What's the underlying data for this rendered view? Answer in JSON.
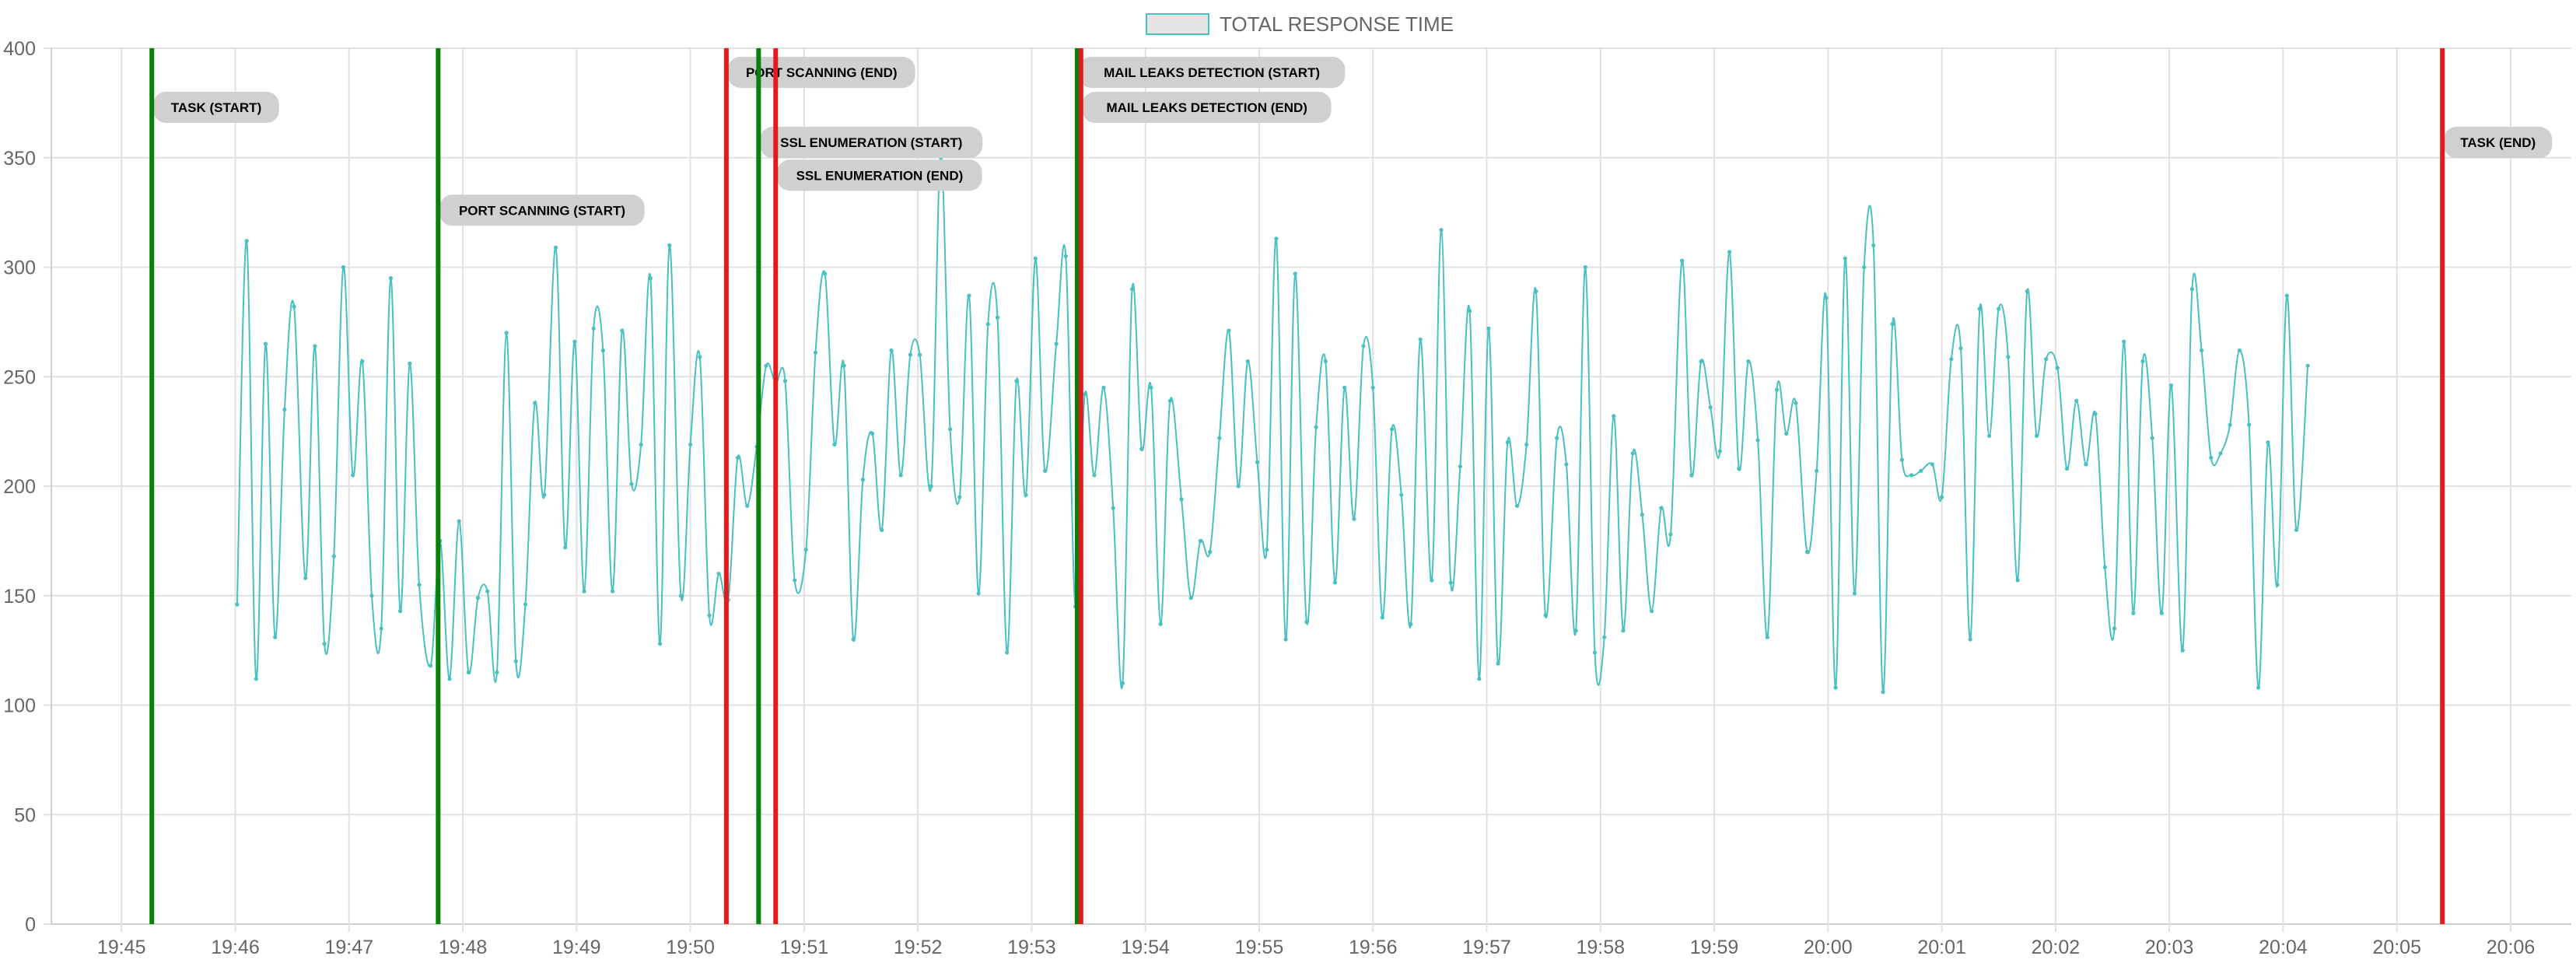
{
  "legend": {
    "label": "TOTAL RESPONSE TIME",
    "swatch_fill": "#e4e4e4",
    "swatch_stroke": "#4bc0c0"
  },
  "colors": {
    "series": "#4bc0c0",
    "start_event": "#0a7f0a",
    "end_event": "#e8191a",
    "annotation_bg": "#d0d0d0",
    "grid": "#e1e1e1",
    "tick_text": "#666666"
  },
  "chart_data": {
    "type": "line",
    "title": "",
    "xlabel": "",
    "ylabel": "",
    "ylim": [
      0,
      400
    ],
    "y_ticks": [
      0,
      50,
      100,
      150,
      200,
      250,
      300,
      350,
      400
    ],
    "x_time_range": [
      "19:44:23",
      "20:06:32"
    ],
    "x_ticks": [
      "19:45",
      "19:46",
      "19:47",
      "19:48",
      "19:49",
      "19:50",
      "19:51",
      "19:52",
      "19:53",
      "19:54",
      "19:55",
      "19:56",
      "19:57",
      "19:58",
      "19:59",
      "20:00",
      "20:01",
      "20:02",
      "20:03",
      "20:04",
      "20:05",
      "20:06"
    ],
    "grid": true,
    "legend_position": "top",
    "series": [
      {
        "name": "TOTAL RESPONSE TIME",
        "x": [
          "19:46:01",
          "19:46:06",
          "19:46:11",
          "19:46:16",
          "19:46:21",
          "19:46:26",
          "19:46:31",
          "19:46:37",
          "19:46:42",
          "19:46:47",
          "19:46:52",
          "19:46:57",
          "19:47:02",
          "19:47:07",
          "19:47:12",
          "19:47:17",
          "19:47:22",
          "19:47:27",
          "19:47:32",
          "19:47:37",
          "19:47:43",
          "19:47:48",
          "19:47:53",
          "19:47:58",
          "19:48:03",
          "19:48:08",
          "19:48:13",
          "19:48:18",
          "19:48:23",
          "19:48:28",
          "19:48:33",
          "19:48:38",
          "19:48:43",
          "19:48:49",
          "19:48:54",
          "19:48:59",
          "19:49:04",
          "19:49:09",
          "19:49:14",
          "19:49:19",
          "19:49:24",
          "19:49:29",
          "19:49:34",
          "19:49:39",
          "19:49:44",
          "19:49:49",
          "19:49:55",
          "19:50:00",
          "19:50:05",
          "19:50:10",
          "19:50:15",
          "19:50:20",
          "19:50:25",
          "19:50:30",
          "19:50:35",
          "19:50:40",
          "19:50:45",
          "19:50:50",
          "19:50:55",
          "19:51:01",
          "19:51:06",
          "19:51:11",
          "19:51:16",
          "19:51:21",
          "19:51:26",
          "19:51:31",
          "19:51:36",
          "19:51:41",
          "19:51:46",
          "19:51:51",
          "19:51:56",
          "19:52:01",
          "19:52:07",
          "19:52:12",
          "19:52:17",
          "19:52:22",
          "19:52:27",
          "19:52:32",
          "19:52:37",
          "19:52:42",
          "19:52:47",
          "19:52:52",
          "19:52:57",
          "19:53:02",
          "19:53:07",
          "19:53:13",
          "19:53:18",
          "19:53:23",
          "19:53:28",
          "19:53:33",
          "19:53:38",
          "19:53:43",
          "19:53:48",
          "19:53:53",
          "19:53:58",
          "19:54:03",
          "19:54:08",
          "19:54:13",
          "19:54:19",
          "19:54:24",
          "19:54:29",
          "19:54:34",
          "19:54:39",
          "19:54:44",
          "19:54:49",
          "19:54:54",
          "19:54:59",
          "19:55:04",
          "19:55:09",
          "19:55:14",
          "19:55:19",
          "19:55:25",
          "19:55:30",
          "19:55:35",
          "19:55:40",
          "19:55:45",
          "19:55:50",
          "19:55:55",
          "19:56:00",
          "19:56:05",
          "19:56:10",
          "19:56:15",
          "19:56:20",
          "19:56:25",
          "19:56:31",
          "19:56:36",
          "19:56:41",
          "19:56:46",
          "19:56:51",
          "19:56:56",
          "19:57:01",
          "19:57:06",
          "19:57:11",
          "19:57:16",
          "19:57:21",
          "19:57:26",
          "19:57:31",
          "19:57:37",
          "19:57:42",
          "19:57:47",
          "19:57:52",
          "19:57:57",
          "19:58:02",
          "19:58:07",
          "19:58:12",
          "19:58:17",
          "19:58:22",
          "19:58:27",
          "19:58:32",
          "19:58:37",
          "19:58:43",
          "19:58:48",
          "19:58:53",
          "19:58:58",
          "19:59:03",
          "19:59:08",
          "19:59:13",
          "19:59:18",
          "19:59:23",
          "19:59:28",
          "19:59:33",
          "19:59:38",
          "19:59:43",
          "19:59:49",
          "19:59:54",
          "19:59:59",
          "20:00:04",
          "20:00:09",
          "20:00:14",
          "20:00:19",
          "20:00:24",
          "20:00:29",
          "20:00:34",
          "20:00:39",
          "20:00:44",
          "20:00:49",
          "20:00:55",
          "20:01:00",
          "20:01:05",
          "20:01:10",
          "20:01:15",
          "20:01:20",
          "20:01:25",
          "20:01:30",
          "20:01:35",
          "20:01:40",
          "20:01:45",
          "20:01:50",
          "20:01:55",
          "20:02:01",
          "20:02:06",
          "20:02:11",
          "20:02:16",
          "20:02:21",
          "20:02:26",
          "20:02:31",
          "20:02:36",
          "20:02:41",
          "20:02:46",
          "20:02:51",
          "20:02:56",
          "20:03:01",
          "20:03:07",
          "20:03:12",
          "20:03:17",
          "20:03:22",
          "20:03:27",
          "20:03:32",
          "20:03:37",
          "20:03:42",
          "20:03:47",
          "20:03:52",
          "20:03:57",
          "20:04:02",
          "20:04:07",
          "20:04:13"
        ],
        "y": [
          146,
          312,
          112,
          265,
          131,
          235,
          282,
          158,
          264,
          128,
          168,
          300,
          205,
          257,
          150,
          135,
          295,
          143,
          256,
          155,
          118,
          175,
          112,
          184,
          115,
          149,
          152,
          115,
          270,
          120,
          146,
          238,
          196,
          309,
          172,
          266,
          152,
          272,
          262,
          152,
          271,
          201,
          219,
          295,
          128,
          310,
          150,
          219,
          259,
          141,
          160,
          148,
          213,
          191,
          218,
          255,
          247,
          248,
          157,
          171,
          261,
          297,
          219,
          255,
          130,
          203,
          224,
          180,
          262,
          205,
          260,
          260,
          200,
          352,
          226,
          195,
          287,
          151,
          274,
          277,
          124,
          248,
          196,
          304,
          207,
          265,
          305,
          145,
          242,
          205,
          245,
          190,
          110,
          290,
          217,
          245,
          137,
          239,
          194,
          149,
          175,
          170,
          222,
          271,
          200,
          257,
          211,
          171,
          313,
          130,
          297,
          138,
          227,
          257,
          156,
          245,
          185,
          264,
          245,
          140,
          226,
          196,
          137,
          267,
          157,
          317,
          156,
          209,
          280,
          112,
          272,
          119,
          220,
          191,
          219,
          289,
          141,
          222,
          210,
          134,
          300,
          124,
          131,
          232,
          134,
          215,
          187,
          143,
          190,
          178,
          303,
          205,
          257,
          236,
          216,
          307,
          208,
          257,
          221,
          131,
          244,
          224,
          238,
          170,
          207,
          286,
          108,
          304,
          151,
          300,
          310,
          106,
          274,
          212,
          205,
          207,
          210,
          195,
          258,
          263,
          130,
          281,
          223,
          281,
          259,
          157,
          289,
          223,
          258,
          254,
          208,
          239,
          210,
          233,
          163,
          135,
          266,
          142,
          257,
          222,
          142,
          246,
          125,
          290,
          262,
          213,
          215,
          228,
          262,
          228,
          108,
          220,
          155,
          287,
          180,
          255
        ]
      }
    ],
    "events": [
      {
        "label": "TASK (START)",
        "time": "19:45:16",
        "kind": "start",
        "label_y": 373
      },
      {
        "label": "PORT SCANNING (START)",
        "time": "19:47:47",
        "kind": "start",
        "label_y": 326
      },
      {
        "label": "PORT SCANNING (END)",
        "time": "19:50:19",
        "kind": "end",
        "label_y": 389
      },
      {
        "label": "SSL ENUMERATION (START)",
        "time": "19:50:36",
        "kind": "start",
        "label_y": 357
      },
      {
        "label": "SSL ENUMERATION (END)",
        "time": "19:50:45",
        "kind": "end",
        "label_y": 342
      },
      {
        "label": "MAIL LEAKS DETECTION (START)",
        "time": "19:53:24",
        "kind": "start",
        "label_y": 389
      },
      {
        "label": "MAIL LEAKS DETECTION (END)",
        "time": "19:53:26",
        "kind": "end",
        "label_y": 373
      },
      {
        "label": "TASK (END)",
        "time": "20:05:24",
        "kind": "end",
        "label_y": 357
      }
    ]
  }
}
